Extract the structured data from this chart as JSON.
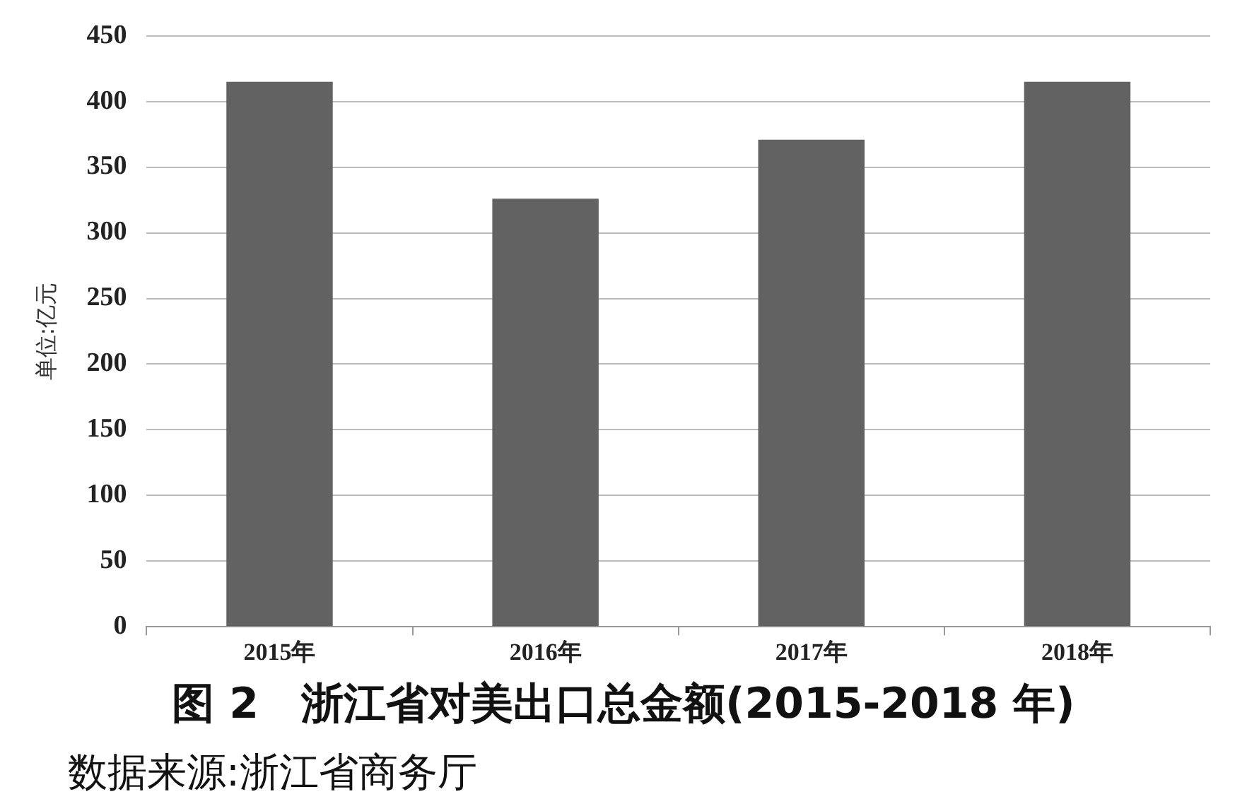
{
  "chart_data": {
    "type": "bar",
    "title": "图 2　浙江省对美出口总金额(2015-2018 年)",
    "ylabel": "单位:亿元",
    "annotations": [
      "数据来源:浙江省商务厅"
    ],
    "categories": [
      "2015年",
      "2016年",
      "2017年",
      "2018年"
    ],
    "values": [
      415,
      326,
      371,
      415
    ],
    "color": "#626262",
    "ylim": [
      0,
      450
    ],
    "yticks": [
      0,
      50,
      100,
      150,
      200,
      250,
      300,
      350,
      400,
      450
    ],
    "grid": "y",
    "legend": false
  }
}
